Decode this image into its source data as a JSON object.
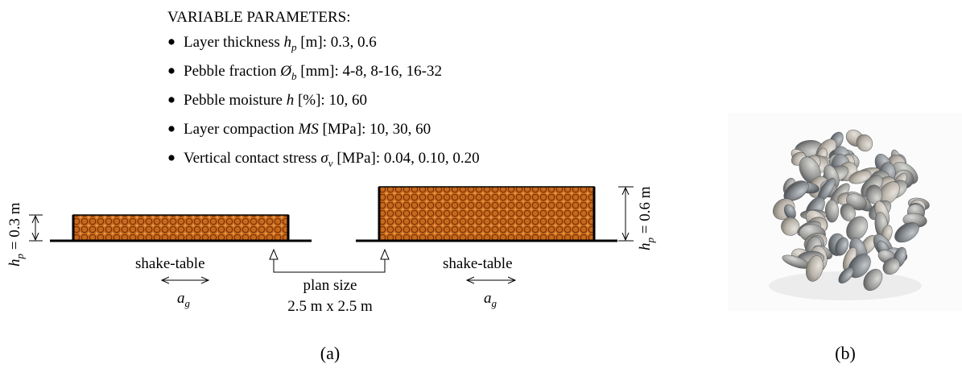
{
  "parameters": {
    "heading": "VARIABLE PARAMETERS:",
    "items": [
      {
        "pre": "Layer thickness ",
        "sym": "h",
        "sub": "p",
        "post": " [m]: 0.3, 0.6"
      },
      {
        "pre": "Pebble fraction ",
        "sym": "Ø",
        "sub": "b",
        "post": " [mm]: 4-8, 8-16, 16-32"
      },
      {
        "pre": "Pebble moisture ",
        "sym": "h",
        "sub": "",
        "post": " [%]: 10, 60"
      },
      {
        "pre": "Layer compaction ",
        "sym": "MS",
        "sub": "",
        "post": " [MPa]: 10, 30, 60"
      },
      {
        "pre": "Vertical contact stress ",
        "sym": "σ",
        "sub": "v",
        "post": " [MPa]: 0.04, 0.10, 0.20"
      }
    ]
  },
  "diagram": {
    "left_thickness": {
      "sym": "h",
      "sub": "p",
      "value": " = 0.3 m"
    },
    "right_thickness": {
      "sym": "h",
      "sub": "p",
      "value": " = 0.6 m"
    },
    "table_label_left": "shake-table",
    "table_label_right": "shake-table",
    "accel_sym": "a",
    "accel_sub": "g",
    "plan_size_label": "plan size",
    "plan_size_value": "2.5 m x 2.5 m",
    "layer_color": "#c8691b",
    "pebble_color": "#8a3a08"
  },
  "captions": {
    "a": "(a)",
    "b": "(b)"
  },
  "photo": {
    "subject": "pile of grey pebbles",
    "icon": "pebbles-photo"
  }
}
